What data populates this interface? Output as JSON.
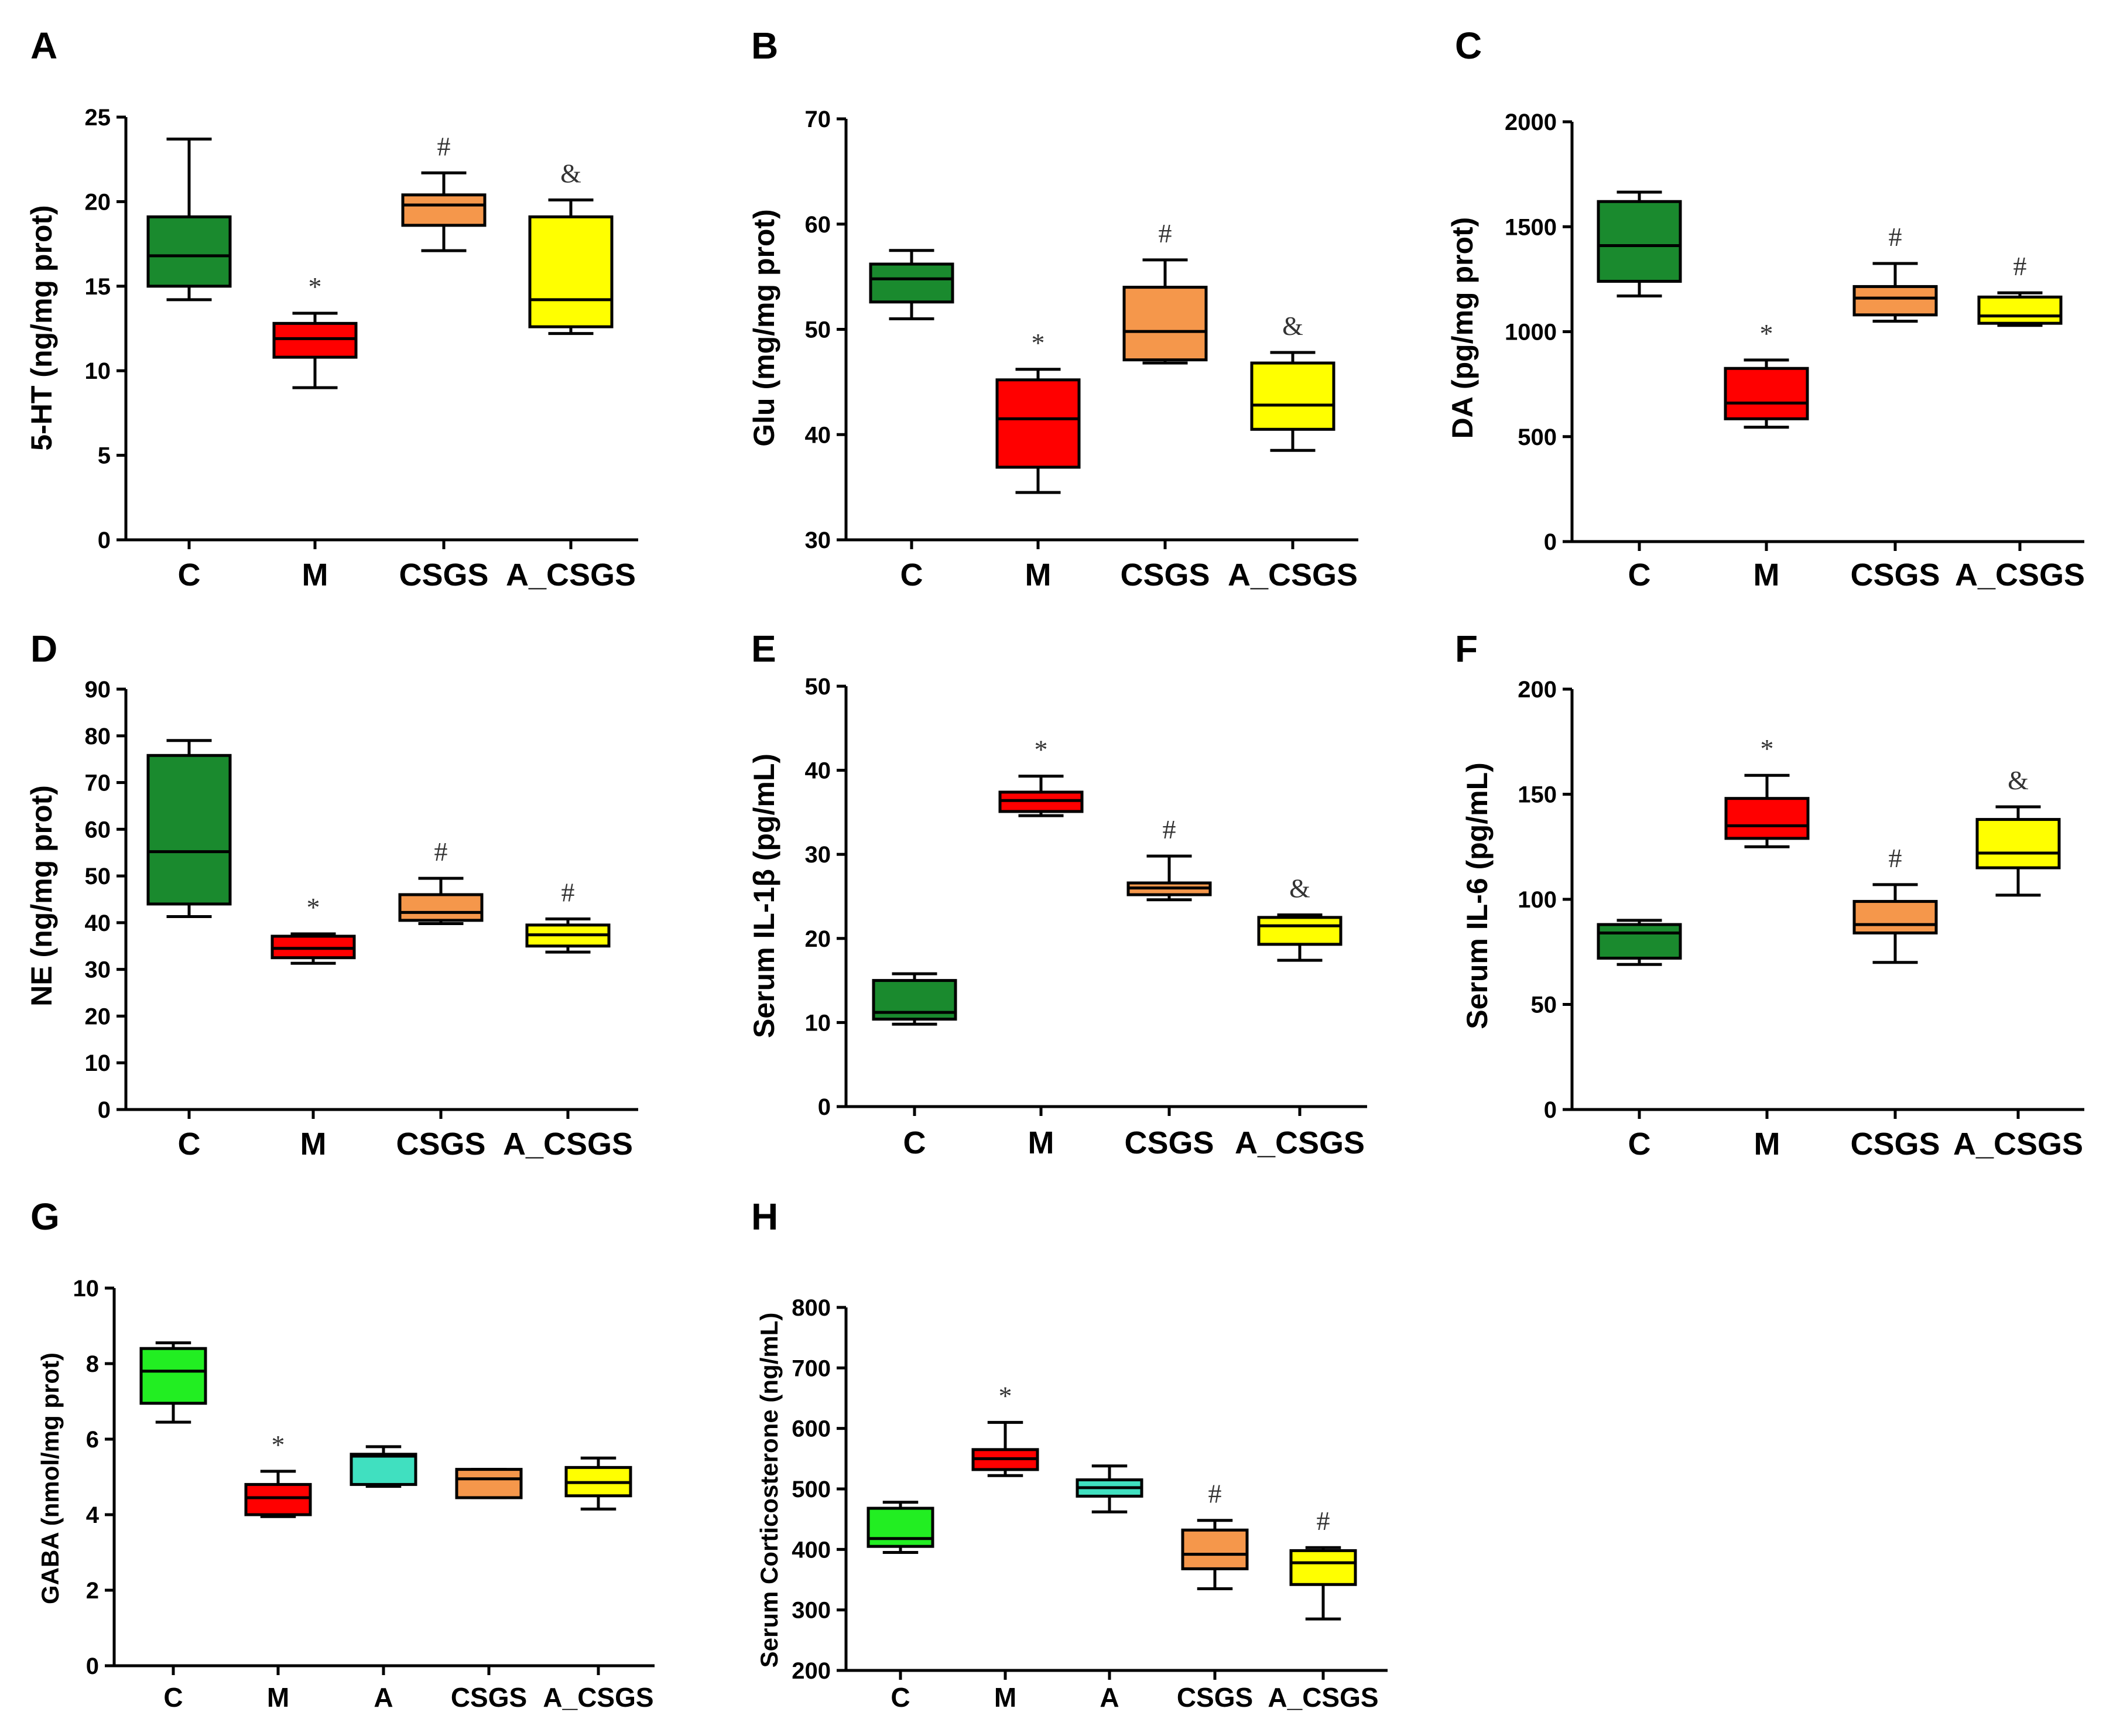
{
  "colors": {
    "C": "#1a8a2e",
    "M": "#ff0000",
    "CSGS": "#f5974b",
    "A_CSGS": "#ffff00",
    "C_light": "#22ee22",
    "A": "#40e0c0"
  },
  "chart_data": [
    {
      "panel": "A",
      "type": "box",
      "ylabel": "5-HT (ng/mg prot)",
      "ylim": [
        0,
        25
      ],
      "yticks": [
        0,
        5,
        10,
        15,
        20,
        25
      ],
      "categories": [
        "C",
        "M",
        "CSGS",
        "A_CSGS"
      ],
      "boxes": [
        {
          "cat": "C",
          "min": 14.2,
          "q1": 15.0,
          "median": 16.8,
          "q3": 19.1,
          "max": 23.7,
          "annot": "",
          "color": "C"
        },
        {
          "cat": "M",
          "min": 9.0,
          "q1": 10.8,
          "median": 11.9,
          "q3": 12.8,
          "max": 13.4,
          "annot": "*",
          "color": "M"
        },
        {
          "cat": "CSGS",
          "min": 17.1,
          "q1": 18.6,
          "median": 19.8,
          "q3": 20.4,
          "max": 21.7,
          "annot": "#",
          "color": "CSGS"
        },
        {
          "cat": "A_CSGS",
          "min": 12.2,
          "q1": 12.6,
          "median": 14.2,
          "q3": 19.1,
          "max": 20.1,
          "annot": "&",
          "color": "A_CSGS"
        }
      ]
    },
    {
      "panel": "B",
      "type": "box",
      "ylabel": "Glu (mg/mg prot)",
      "ylim": [
        30,
        70
      ],
      "yticks": [
        30,
        40,
        50,
        60,
        70
      ],
      "categories": [
        "C",
        "M",
        "CSGS",
        "A_CSGS"
      ],
      "boxes": [
        {
          "cat": "C",
          "min": 51.0,
          "q1": 52.6,
          "median": 54.8,
          "q3": 56.2,
          "max": 57.5,
          "annot": "",
          "color": "C"
        },
        {
          "cat": "M",
          "min": 34.5,
          "q1": 36.9,
          "median": 41.5,
          "q3": 45.2,
          "max": 46.2,
          "annot": "*",
          "color": "M"
        },
        {
          "cat": "CSGS",
          "min": 46.8,
          "q1": 47.1,
          "median": 49.8,
          "q3": 54.0,
          "max": 56.6,
          "annot": "#",
          "color": "CSGS"
        },
        {
          "cat": "A_CSGS",
          "min": 38.5,
          "q1": 40.5,
          "median": 42.8,
          "q3": 46.8,
          "max": 47.8,
          "annot": "&",
          "color": "A_CSGS"
        }
      ]
    },
    {
      "panel": "C",
      "type": "box",
      "ylabel": "DA (pg/mg prot)",
      "ylim": [
        0,
        2000
      ],
      "yticks": [
        0,
        500,
        1000,
        1500,
        2000
      ],
      "categories": [
        "C",
        "M",
        "CSGS",
        "A_CSGS"
      ],
      "boxes": [
        {
          "cat": "C",
          "min": 1170,
          "q1": 1240,
          "median": 1410,
          "q3": 1620,
          "max": 1665,
          "annot": "",
          "color": "C"
        },
        {
          "cat": "M",
          "min": 545,
          "q1": 585,
          "median": 660,
          "q3": 825,
          "max": 865,
          "annot": "*",
          "color": "M"
        },
        {
          "cat": "CSGS",
          "min": 1050,
          "q1": 1080,
          "median": 1160,
          "q3": 1215,
          "max": 1325,
          "annot": "#",
          "color": "CSGS"
        },
        {
          "cat": "A_CSGS",
          "min": 1030,
          "q1": 1040,
          "median": 1075,
          "q3": 1165,
          "max": 1185,
          "annot": "#",
          "color": "A_CSGS"
        }
      ]
    },
    {
      "panel": "D",
      "type": "box",
      "ylabel": "NE (ng/mg prot)",
      "ylim": [
        0,
        90
      ],
      "yticks": [
        0,
        10,
        20,
        30,
        40,
        50,
        60,
        70,
        80,
        90
      ],
      "categories": [
        "C",
        "M",
        "CSGS",
        "A_CSGS"
      ],
      "boxes": [
        {
          "cat": "C",
          "min": 41.3,
          "q1": 44.0,
          "median": 55.2,
          "q3": 75.8,
          "max": 79.0,
          "annot": "",
          "color": "C"
        },
        {
          "cat": "M",
          "min": 31.3,
          "q1": 32.5,
          "median": 34.5,
          "q3": 37.1,
          "max": 37.6,
          "annot": "*",
          "color": "M"
        },
        {
          "cat": "CSGS",
          "min": 39.8,
          "q1": 40.5,
          "median": 42.2,
          "q3": 46.0,
          "max": 49.5,
          "annot": "#",
          "color": "CSGS"
        },
        {
          "cat": "A_CSGS",
          "min": 33.7,
          "q1": 35.0,
          "median": 37.4,
          "q3": 39.5,
          "max": 40.8,
          "annot": "#",
          "color": "A_CSGS"
        }
      ]
    },
    {
      "panel": "E",
      "type": "box",
      "ylabel": "Serum IL-1β  (pg/mL)",
      "ylim": [
        0,
        50
      ],
      "yticks": [
        0,
        10,
        20,
        30,
        40,
        50
      ],
      "categories": [
        "C",
        "M",
        "CSGS",
        "A_CSGS"
      ],
      "boxes": [
        {
          "cat": "C",
          "min": 9.8,
          "q1": 10.4,
          "median": 11.2,
          "q3": 15.0,
          "max": 15.8,
          "annot": "",
          "color": "C"
        },
        {
          "cat": "M",
          "min": 34.6,
          "q1": 35.1,
          "median": 36.4,
          "q3": 37.4,
          "max": 39.3,
          "annot": "*",
          "color": "M"
        },
        {
          "cat": "CSGS",
          "min": 24.6,
          "q1": 25.2,
          "median": 26.0,
          "q3": 26.6,
          "max": 29.8,
          "annot": "#",
          "color": "CSGS"
        },
        {
          "cat": "A_CSGS",
          "min": 17.4,
          "q1": 19.3,
          "median": 21.5,
          "q3": 22.5,
          "max": 22.8,
          "annot": "&",
          "color": "A_CSGS"
        }
      ]
    },
    {
      "panel": "F",
      "type": "box",
      "ylabel": "Serum IL-6 (pg/mL)",
      "ylim": [
        0,
        200
      ],
      "yticks": [
        0,
        50,
        100,
        150,
        200
      ],
      "categories": [
        "C",
        "M",
        "CSGS",
        "A_CSGS"
      ],
      "boxes": [
        {
          "cat": "C",
          "min": 69,
          "q1": 72,
          "median": 84,
          "q3": 88,
          "max": 90,
          "annot": "",
          "color": "C"
        },
        {
          "cat": "M",
          "min": 125,
          "q1": 129,
          "median": 135,
          "q3": 148,
          "max": 159,
          "annot": "*",
          "color": "M"
        },
        {
          "cat": "CSGS",
          "min": 70,
          "q1": 84,
          "median": 88,
          "q3": 99,
          "max": 107,
          "annot": "#",
          "color": "CSGS"
        },
        {
          "cat": "A_CSGS",
          "min": 102,
          "q1": 115,
          "median": 122,
          "q3": 138,
          "max": 144,
          "annot": "&",
          "color": "A_CSGS"
        }
      ]
    },
    {
      "panel": "G",
      "type": "box",
      "ylabel": "GABA (nmol/mg prot)",
      "ylim": [
        0,
        10
      ],
      "yticks": [
        0,
        2,
        4,
        6,
        8,
        10
      ],
      "categories": [
        "C",
        "M",
        "A",
        "CSGS",
        "A_CSGS"
      ],
      "boxes": [
        {
          "cat": "C",
          "min": 6.45,
          "q1": 6.95,
          "median": 7.8,
          "q3": 8.4,
          "max": 8.55,
          "annot": "",
          "color": "C_light"
        },
        {
          "cat": "M",
          "min": 3.95,
          "q1": 4.0,
          "median": 4.45,
          "q3": 4.8,
          "max": 5.15,
          "annot": "*",
          "color": "M"
        },
        {
          "cat": "A",
          "min": 4.75,
          "q1": 4.8,
          "median": 5.55,
          "q3": 5.6,
          "max": 5.8,
          "annot": "",
          "color": "A"
        },
        {
          "cat": "CSGS",
          "min": 4.45,
          "q1": 4.45,
          "median": 4.95,
          "q3": 5.2,
          "max": 5.2,
          "annot": "",
          "color": "CSGS"
        },
        {
          "cat": "A_CSGS",
          "min": 4.15,
          "q1": 4.5,
          "median": 4.85,
          "q3": 5.25,
          "max": 5.5,
          "annot": "",
          "color": "A_CSGS"
        }
      ]
    },
    {
      "panel": "H",
      "type": "box",
      "ylabel": "Serum Corticosterone (ng/mL)",
      "ylim": [
        200,
        800
      ],
      "yticks": [
        200,
        300,
        400,
        500,
        600,
        700,
        800
      ],
      "categories": [
        "C",
        "M",
        "A",
        "CSGS",
        "A_CSGS"
      ],
      "boxes": [
        {
          "cat": "C",
          "min": 395,
          "q1": 405,
          "median": 418,
          "q3": 468,
          "max": 478,
          "annot": "",
          "color": "C_light"
        },
        {
          "cat": "M",
          "min": 522,
          "q1": 532,
          "median": 550,
          "q3": 565,
          "max": 610,
          "annot": "*",
          "color": "M"
        },
        {
          "cat": "A",
          "min": 462,
          "q1": 488,
          "median": 502,
          "q3": 515,
          "max": 538,
          "annot": "",
          "color": "A"
        },
        {
          "cat": "CSGS",
          "min": 335,
          "q1": 368,
          "median": 392,
          "q3": 432,
          "max": 448,
          "annot": "#",
          "color": "CSGS"
        },
        {
          "cat": "A_CSGS",
          "min": 285,
          "q1": 342,
          "median": 378,
          "q3": 398,
          "max": 403,
          "annot": "#",
          "color": "A_CSGS"
        }
      ]
    }
  ]
}
